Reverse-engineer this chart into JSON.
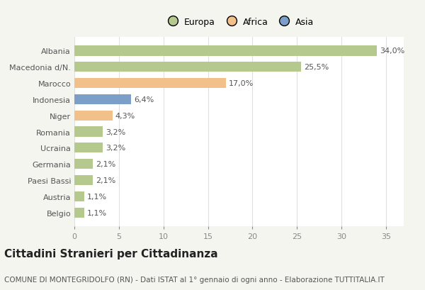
{
  "categories": [
    "Albania",
    "Macedonia d/N.",
    "Marocco",
    "Indonesia",
    "Niger",
    "Romania",
    "Ucraina",
    "Germania",
    "Paesi Bassi",
    "Austria",
    "Belgio"
  ],
  "values": [
    34.0,
    25.5,
    17.0,
    6.4,
    4.3,
    3.2,
    3.2,
    2.1,
    2.1,
    1.1,
    1.1
  ],
  "labels": [
    "34,0%",
    "25,5%",
    "17,0%",
    "6,4%",
    "4,3%",
    "3,2%",
    "3,2%",
    "2,1%",
    "2,1%",
    "1,1%",
    "1,1%"
  ],
  "colors": [
    "#b5c98e",
    "#b5c98e",
    "#f2c08a",
    "#7b9fc7",
    "#f2c08a",
    "#b5c98e",
    "#b5c98e",
    "#b5c98e",
    "#b5c98e",
    "#b5c98e",
    "#b5c98e"
  ],
  "legend_labels": [
    "Europa",
    "Africa",
    "Asia"
  ],
  "legend_colors": [
    "#b5c98e",
    "#f2c08a",
    "#7b9fc7"
  ],
  "title": "Cittadini Stranieri per Cittadinanza",
  "subtitle": "COMUNE DI MONTEGRIDOLFO (RN) - Dati ISTAT al 1° gennaio di ogni anno - Elaborazione TUTTITALIA.IT",
  "xlim": [
    0,
    37
  ],
  "xticks": [
    0,
    5,
    10,
    15,
    20,
    25,
    30,
    35
  ],
  "background_color": "#f5f5f0",
  "plot_background": "#ffffff",
  "grid_color": "#e0e0e0",
  "bar_height": 0.62,
  "title_fontsize": 11,
  "subtitle_fontsize": 7.5,
  "label_fontsize": 8,
  "tick_fontsize": 8,
  "legend_fontsize": 9
}
